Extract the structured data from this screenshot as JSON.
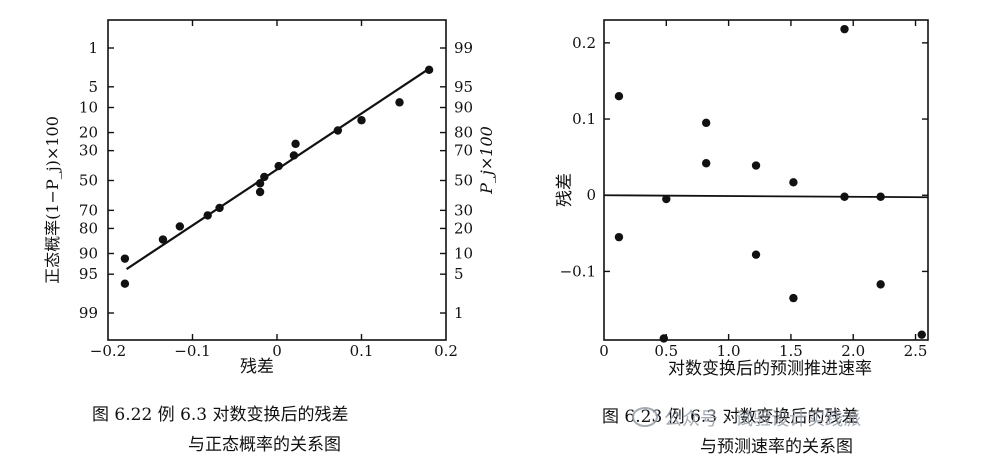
{
  "chart_data": [
    {
      "type": "scatter",
      "xlabel": "残差",
      "ylabel": "正态概率(1−P_j)×100",
      "y2label": "P_j×100",
      "xlim": [
        -0.2,
        0.2
      ],
      "x_ticks": [
        "−0.2",
        "−0.1",
        "0",
        "0.1",
        "0.2"
      ],
      "x_tick_values": [
        -0.2,
        -0.1,
        0,
        0.1,
        0.2
      ],
      "y_ticks": [
        "1",
        "5",
        "10",
        "20",
        "30",
        "50",
        "70",
        "80",
        "90",
        "95",
        "99"
      ],
      "y_tick_values": [
        1,
        5,
        10,
        20,
        30,
        50,
        70,
        80,
        90,
        95,
        99
      ],
      "y2_ticks": [
        "99",
        "95",
        "90",
        "80",
        "70",
        "50",
        "30",
        "20",
        "10",
        "5",
        "1"
      ],
      "points": [
        {
          "x": -0.18,
          "y": 91.5
        },
        {
          "x": -0.18,
          "y": 96.5
        },
        {
          "x": -0.135,
          "y": 85
        },
        {
          "x": -0.115,
          "y": 79
        },
        {
          "x": -0.082,
          "y": 73
        },
        {
          "x": -0.068,
          "y": 68.5
        },
        {
          "x": -0.02,
          "y": 58
        },
        {
          "x": -0.02,
          "y": 52
        },
        {
          "x": -0.015,
          "y": 47.5
        },
        {
          "x": 0.002,
          "y": 40
        },
        {
          "x": 0.02,
          "y": 33
        },
        {
          "x": 0.022,
          "y": 26
        },
        {
          "x": 0.072,
          "y": 19
        },
        {
          "x": 0.1,
          "y": 14.5
        },
        {
          "x": 0.145,
          "y": 8.5
        },
        {
          "x": 0.18,
          "y": 2.6
        }
      ],
      "fit_line": [
        {
          "x": -0.178,
          "y": 94
        },
        {
          "x": 0.178,
          "y": 2.6
        }
      ],
      "caption_lines": [
        "图 6.22   例 6.3 对数变换后的残差",
        "与正态概率的关系图"
      ]
    },
    {
      "type": "scatter",
      "xlabel": "对数变换后的预测推进速率",
      "ylabel": "残差",
      "xlim": [
        0,
        2.6
      ],
      "ylim": [
        -0.19,
        0.23
      ],
      "x_ticks": [
        "0",
        "0.5",
        "1.0",
        "1.5",
        "2.0",
        "2.5"
      ],
      "x_tick_values": [
        0,
        0.5,
        1.0,
        1.5,
        2.0,
        2.5
      ],
      "y_ticks": [
        "0.2",
        "0.1",
        "0",
        "−0.1"
      ],
      "y_tick_values": [
        0.2,
        0.1,
        0,
        -0.1
      ],
      "points": [
        {
          "x": 0.12,
          "y": 0.13
        },
        {
          "x": 0.12,
          "y": -0.055
        },
        {
          "x": 0.5,
          "y": -0.005
        },
        {
          "x": 0.48,
          "y": -0.188
        },
        {
          "x": 0.82,
          "y": 0.095
        },
        {
          "x": 0.82,
          "y": 0.042
        },
        {
          "x": 1.22,
          "y": 0.039
        },
        {
          "x": 1.22,
          "y": -0.078
        },
        {
          "x": 1.52,
          "y": 0.017
        },
        {
          "x": 1.52,
          "y": -0.135
        },
        {
          "x": 1.93,
          "y": 0.218
        },
        {
          "x": 1.93,
          "y": -0.002
        },
        {
          "x": 2.22,
          "y": -0.002
        },
        {
          "x": 2.22,
          "y": -0.117
        },
        {
          "x": 2.55,
          "y": -0.183
        }
      ],
      "zero_line": 0,
      "caption_lines": [
        "图 6.23   例 6.3 对数变换后的残差",
        "与预测速率的关系图"
      ]
    }
  ],
  "watermark": "公众号 · 试验设计实践派"
}
